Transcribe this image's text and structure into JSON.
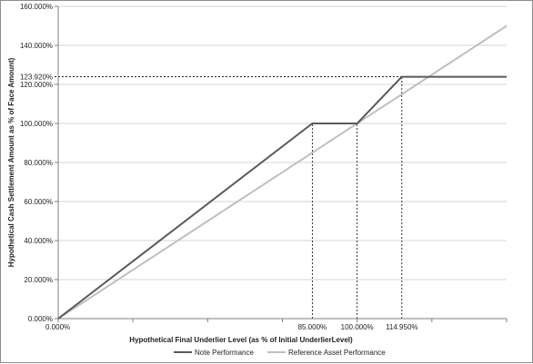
{
  "chart_data": {
    "type": "line",
    "xlabel": "Hypothetical Final Underlier Level (as % of Initial UnderlierLevel)",
    "ylabel": "Hypothetical Cash Settlement Amount as % of Face Amount)",
    "xlim": [
      0,
      150
    ],
    "ylim": [
      0,
      160
    ],
    "y_ticks": [
      {
        "value": 0,
        "label": "0.000%"
      },
      {
        "value": 20,
        "label": "20.000%"
      },
      {
        "value": 40,
        "label": "40.000%"
      },
      {
        "value": 60,
        "label": "60.000%"
      },
      {
        "value": 80,
        "label": "80.000%"
      },
      {
        "value": 100,
        "label": "100.000%"
      },
      {
        "value": 120,
        "label": "120.000%"
      },
      {
        "value": 140,
        "label": "140.000%"
      },
      {
        "value": 160,
        "label": "160.000%"
      }
    ],
    "y_annotation": {
      "value": 123.92,
      "label": "123.920%"
    },
    "x_tick_labels": [
      {
        "value": 0,
        "label": "0.000%"
      },
      {
        "value": 85,
        "label": "85.000%"
      },
      {
        "value": 100,
        "label": "100.000%"
      },
      {
        "value": 114.95,
        "label": "114.950%"
      }
    ],
    "x_minor_ticks": [
      0,
      25,
      50,
      75,
      100,
      125,
      150
    ],
    "series": [
      {
        "name": "Note Performance",
        "color": "#595959",
        "x": [
          0,
          85,
          100,
          114.95,
          150
        ],
        "y": [
          0,
          100,
          100,
          123.92,
          123.92
        ]
      },
      {
        "name": "Reference Asset Performance",
        "color": "#bfbfbf",
        "x": [
          0,
          150
        ],
        "y": [
          0,
          150
        ]
      }
    ],
    "dashed_guides": [
      {
        "x": 85,
        "y": 100
      },
      {
        "x": 100,
        "y": 100
      },
      {
        "x": 114.95,
        "y": 123.92
      }
    ],
    "grid": true,
    "legend_position": "bottom"
  }
}
